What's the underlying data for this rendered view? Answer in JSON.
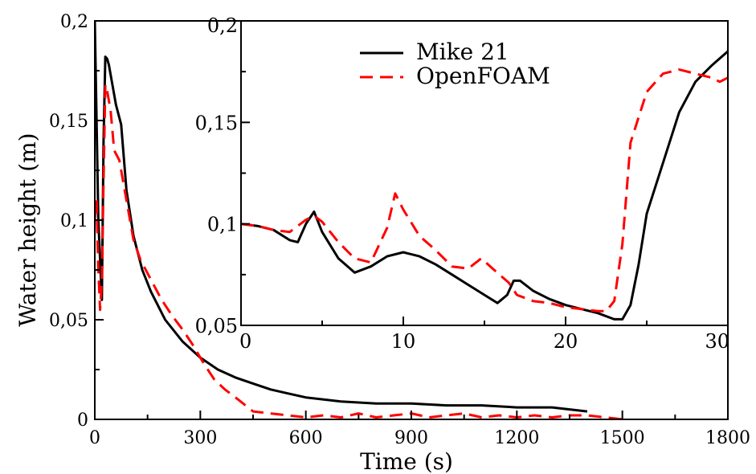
{
  "chart_data": [
    {
      "type": "line",
      "xlabel": "Time (s)",
      "ylabel": "Water height (m)",
      "xlim": [
        0,
        1800
      ],
      "ylim": [
        0,
        0.2
      ],
      "x_ticks": [
        "0",
        "300",
        "600",
        "900",
        "1200",
        "1500",
        "1800"
      ],
      "y_ticks": [
        "0",
        "0,05",
        "0,1",
        "0,15",
        "0,2"
      ],
      "series": [
        {
          "color": "#000000",
          "style": "solid",
          "x": [
            0,
            5,
            10,
            15,
            20,
            25,
            30,
            35,
            40,
            50,
            60,
            75,
            90,
            110,
            135,
            160,
            200,
            250,
            300,
            350,
            400,
            450,
            500,
            550,
            600,
            700,
            800,
            900,
            1000,
            1100,
            1200,
            1300,
            1350,
            1400
          ],
          "y": [
            0.2,
            0.15,
            0.1,
            0.08,
            0.06,
            0.14,
            0.182,
            0.181,
            0.178,
            0.168,
            0.158,
            0.148,
            0.115,
            0.092,
            0.075,
            0.064,
            0.05,
            0.039,
            0.031,
            0.025,
            0.021,
            0.018,
            0.015,
            0.013,
            0.011,
            0.009,
            0.008,
            0.008,
            0.007,
            0.007,
            0.006,
            0.006,
            0.005,
            0.004
          ]
        },
        {
          "color": "#ff0000",
          "style": "dashed",
          "x": [
            0,
            5,
            10,
            15,
            20,
            25,
            30,
            35,
            45,
            55,
            70,
            90,
            110,
            130,
            160,
            190,
            220,
            250,
            280,
            310,
            340,
            370,
            400,
            450,
            500,
            550,
            600,
            650,
            700,
            750,
            800,
            850,
            900,
            950,
            1000,
            1050,
            1100,
            1150,
            1200,
            1250,
            1300,
            1350,
            1400,
            1450,
            1500
          ],
          "y": [
            0.1,
            0.11,
            0.075,
            0.055,
            0.07,
            0.12,
            0.168,
            0.165,
            0.155,
            0.135,
            0.13,
            0.11,
            0.09,
            0.08,
            0.07,
            0.06,
            0.052,
            0.045,
            0.037,
            0.028,
            0.02,
            0.015,
            0.011,
            0.004,
            0.003,
            0.002,
            0.001,
            0.002,
            0.001,
            0.003,
            0.001,
            0.002,
            0.003,
            0.001,
            0.002,
            0.003,
            0.001,
            0.002,
            0.001,
            0.002,
            0.001,
            0.002,
            0.002,
            0.001,
            0.0
          ]
        }
      ]
    },
    {
      "type": "line",
      "xlim": [
        0,
        30
      ],
      "ylim": [
        0.05,
        0.2
      ],
      "x_ticks": [
        "0",
        "10",
        "20",
        "30"
      ],
      "y_ticks": [
        "0,05",
        "0,1",
        "0,15",
        "0,2"
      ],
      "legend": {
        "placement": "top-left",
        "entries": [
          "Mike 21",
          "OpenFOAM"
        ]
      },
      "series": [
        {
          "name": "Mike 21",
          "color": "#000000",
          "style": "solid",
          "x": [
            0,
            1,
            2,
            3,
            3.5,
            4,
            4.5,
            5,
            6,
            7,
            8,
            9,
            10,
            11,
            12,
            13,
            14,
            15,
            15.8,
            16.4,
            16.8,
            17.2,
            18,
            19,
            20,
            21,
            22,
            23,
            23.5,
            24,
            24.5,
            25,
            26,
            27,
            28,
            29,
            30
          ],
          "y": [
            0.1,
            0.099,
            0.097,
            0.092,
            0.091,
            0.1,
            0.106,
            0.096,
            0.083,
            0.076,
            0.079,
            0.084,
            0.086,
            0.084,
            0.08,
            0.075,
            0.07,
            0.065,
            0.061,
            0.065,
            0.072,
            0.072,
            0.067,
            0.063,
            0.06,
            0.058,
            0.056,
            0.053,
            0.053,
            0.06,
            0.08,
            0.105,
            0.13,
            0.155,
            0.17,
            0.178,
            0.185
          ]
        },
        {
          "name": "OpenFOAM",
          "color": "#ff0000",
          "style": "dashed",
          "x": [
            0,
            1,
            2,
            3,
            4,
            4.5,
            5,
            6,
            7,
            8,
            9,
            9.5,
            10,
            11,
            12,
            13,
            14,
            14.8,
            15.5,
            16.5,
            17,
            18,
            19,
            20,
            21,
            22,
            22.5,
            23,
            23.5,
            24,
            25,
            26,
            27,
            28,
            29,
            29.5,
            30
          ],
          "y": [
            0.1,
            0.099,
            0.097,
            0.096,
            0.102,
            0.104,
            0.101,
            0.091,
            0.083,
            0.081,
            0.098,
            0.115,
            0.107,
            0.094,
            0.087,
            0.079,
            0.078,
            0.083,
            0.078,
            0.071,
            0.065,
            0.062,
            0.061,
            0.059,
            0.058,
            0.057,
            0.057,
            0.062,
            0.09,
            0.14,
            0.165,
            0.174,
            0.176,
            0.174,
            0.172,
            0.17,
            0.172
          ]
        }
      ]
    }
  ]
}
